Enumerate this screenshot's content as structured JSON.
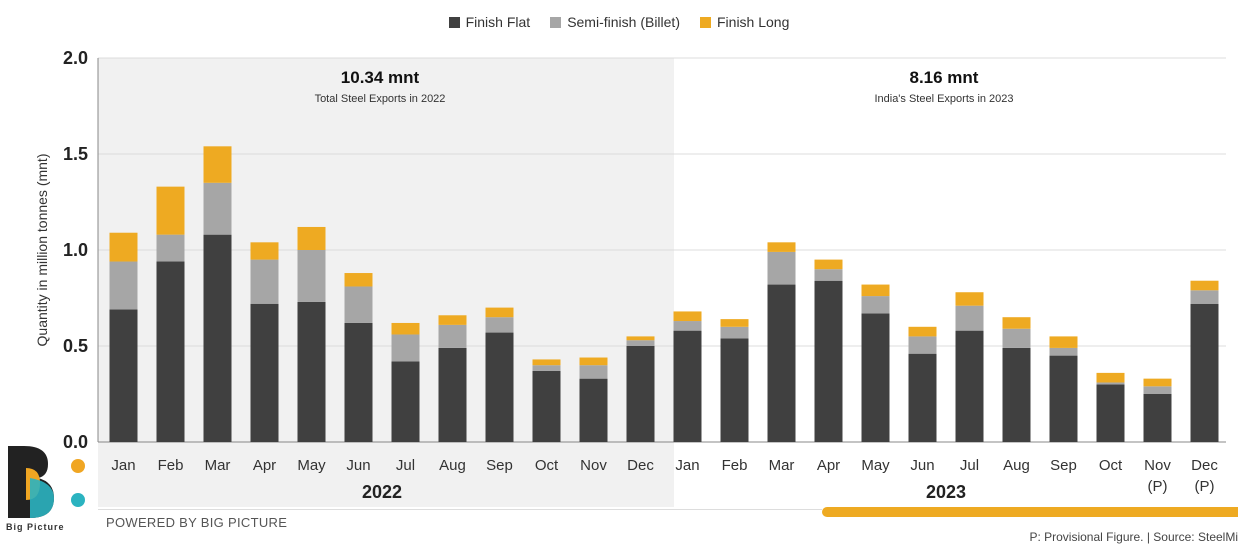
{
  "legend": [
    {
      "label": "Finish Flat",
      "color": "#404040"
    },
    {
      "label": "Semi-finish (Billet)",
      "color": "#a6a6a6"
    },
    {
      "label": "Finish Long",
      "color": "#eeaa22"
    }
  ],
  "annotations": {
    "left_value": "10.34 mnt",
    "left_caption": "Total Steel Exports in 2022",
    "right_value": "8.16 mnt",
    "right_caption": "India's Steel Exports in 2023"
  },
  "footer": {
    "powered": "POWERED BY BIG PICTURE",
    "source": "P: Provisional Figure. | Source: SteelMi",
    "brand": "Big Picture"
  },
  "chart_data": {
    "type": "bar",
    "stacked": true,
    "ylabel": "Quantity in million tonnes (mnt)",
    "ylim": [
      0,
      2.0
    ],
    "yticks": [
      "0.0",
      "0.5",
      "1.0",
      "1.5",
      "2.0"
    ],
    "grid": true,
    "legend_position": "top-center",
    "groups": [
      "2022",
      "2023"
    ],
    "categories": [
      "Jan",
      "Feb",
      "Mar",
      "Apr",
      "May",
      "Jun",
      "Jul",
      "Aug",
      "Sep",
      "Oct",
      "Nov",
      "Dec",
      "Jan",
      "Feb",
      "Mar",
      "Apr",
      "May",
      "Jun",
      "Jul",
      "Aug",
      "Sep",
      "Oct",
      "Nov (P)",
      "Dec (P)"
    ],
    "series": [
      {
        "name": "Finish Flat",
        "color": "#404040",
        "values": [
          0.69,
          0.94,
          1.08,
          0.72,
          0.73,
          0.62,
          0.42,
          0.49,
          0.57,
          0.37,
          0.33,
          0.5,
          0.58,
          0.54,
          0.82,
          0.84,
          0.67,
          0.46,
          0.58,
          0.49,
          0.45,
          0.3,
          0.25,
          0.72
        ]
      },
      {
        "name": "Semi-finish (Billet)",
        "color": "#a6a6a6",
        "values": [
          0.25,
          0.14,
          0.27,
          0.23,
          0.27,
          0.19,
          0.14,
          0.12,
          0.08,
          0.03,
          0.07,
          0.03,
          0.05,
          0.06,
          0.17,
          0.06,
          0.09,
          0.09,
          0.13,
          0.1,
          0.04,
          0.01,
          0.04,
          0.07
        ]
      },
      {
        "name": "Finish Long",
        "color": "#eeaa22",
        "values": [
          0.15,
          0.25,
          0.19,
          0.09,
          0.12,
          0.07,
          0.06,
          0.05,
          0.05,
          0.03,
          0.04,
          0.02,
          0.05,
          0.04,
          0.05,
          0.05,
          0.06,
          0.05,
          0.07,
          0.06,
          0.06,
          0.05,
          0.04,
          0.05
        ]
      }
    ]
  }
}
